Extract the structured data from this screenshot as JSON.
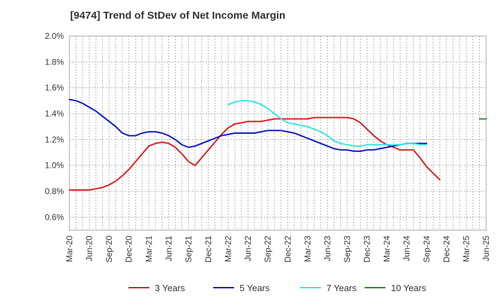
{
  "chart_data": {
    "type": "line",
    "title": "[9474]  Trend of StDev of Net Income Margin",
    "xlabel": "",
    "ylabel": "",
    "ylim": [
      0.5,
      2.0
    ],
    "y_ticks": [
      "0.6%",
      "0.8%",
      "1.0%",
      "1.2%",
      "1.4%",
      "1.6%",
      "1.8%",
      "2.0%"
    ],
    "y_tick_values": [
      0.6,
      0.8,
      1.0,
      1.2,
      1.4,
      1.6,
      1.8,
      2.0
    ],
    "x_ticks": [
      "Mar-20",
      "Jun-20",
      "Sep-20",
      "Dec-20",
      "Mar-21",
      "Jun-21",
      "Sep-21",
      "Dec-21",
      "Mar-22",
      "Jun-22",
      "Sep-22",
      "Dec-22",
      "Mar-23",
      "Jun-23",
      "Sep-23",
      "Dec-23",
      "Mar-24",
      "Jun-24",
      "Sep-24",
      "Dec-24",
      "Mar-25",
      "Jun-25"
    ],
    "grid": true,
    "legend_position": "bottom",
    "series": [
      {
        "name": "3 Years",
        "color": "#dd1c1c",
        "start_index": 0,
        "values": [
          0.81,
          0.81,
          0.81,
          0.81,
          0.82,
          0.83,
          0.85,
          0.88,
          0.92,
          0.97,
          1.03,
          1.09,
          1.15,
          1.17,
          1.18,
          1.17,
          1.14,
          1.09,
          1.03,
          1.0,
          1.06,
          1.12,
          1.18,
          1.24,
          1.29,
          1.32,
          1.33,
          1.34,
          1.34,
          1.34,
          1.35,
          1.36,
          1.36,
          1.36,
          1.36,
          1.36,
          1.36,
          1.37,
          1.37,
          1.37,
          1.37,
          1.37,
          1.37,
          1.36,
          1.33,
          1.28,
          1.23,
          1.19,
          1.16,
          1.14,
          1.12,
          1.12,
          1.12,
          1.06,
          0.99,
          0.94,
          0.89
        ]
      },
      {
        "name": "5 Years",
        "color": "#0b17c6",
        "start_index": 0,
        "values": [
          1.51,
          1.5,
          1.48,
          1.45,
          1.42,
          1.38,
          1.34,
          1.3,
          1.25,
          1.23,
          1.23,
          1.25,
          1.26,
          1.26,
          1.25,
          1.23,
          1.2,
          1.16,
          1.14,
          1.15,
          1.17,
          1.19,
          1.21,
          1.23,
          1.24,
          1.25,
          1.25,
          1.25,
          1.25,
          1.26,
          1.27,
          1.27,
          1.27,
          1.26,
          1.25,
          1.23,
          1.21,
          1.19,
          1.17,
          1.15,
          1.13,
          1.12,
          1.12,
          1.11,
          1.11,
          1.12,
          1.12,
          1.13,
          1.14,
          1.15,
          1.16,
          1.17,
          1.17,
          1.17,
          1.17
        ]
      },
      {
        "name": "7 Years",
        "color": "#33e5e5",
        "start_index": 24,
        "values": [
          1.47,
          1.49,
          1.5,
          1.5,
          1.49,
          1.47,
          1.44,
          1.4,
          1.36,
          1.33,
          1.32,
          1.31,
          1.3,
          1.28,
          1.26,
          1.23,
          1.19,
          1.17,
          1.16,
          1.15,
          1.15,
          1.16,
          1.16,
          1.16,
          1.16,
          1.16,
          1.16,
          1.17,
          1.17,
          1.16,
          1.16
        ]
      },
      {
        "name": "10 Years",
        "color": "#2a8b2a",
        "start_index": 62,
        "values": [
          1.36,
          1.36
        ]
      }
    ]
  }
}
